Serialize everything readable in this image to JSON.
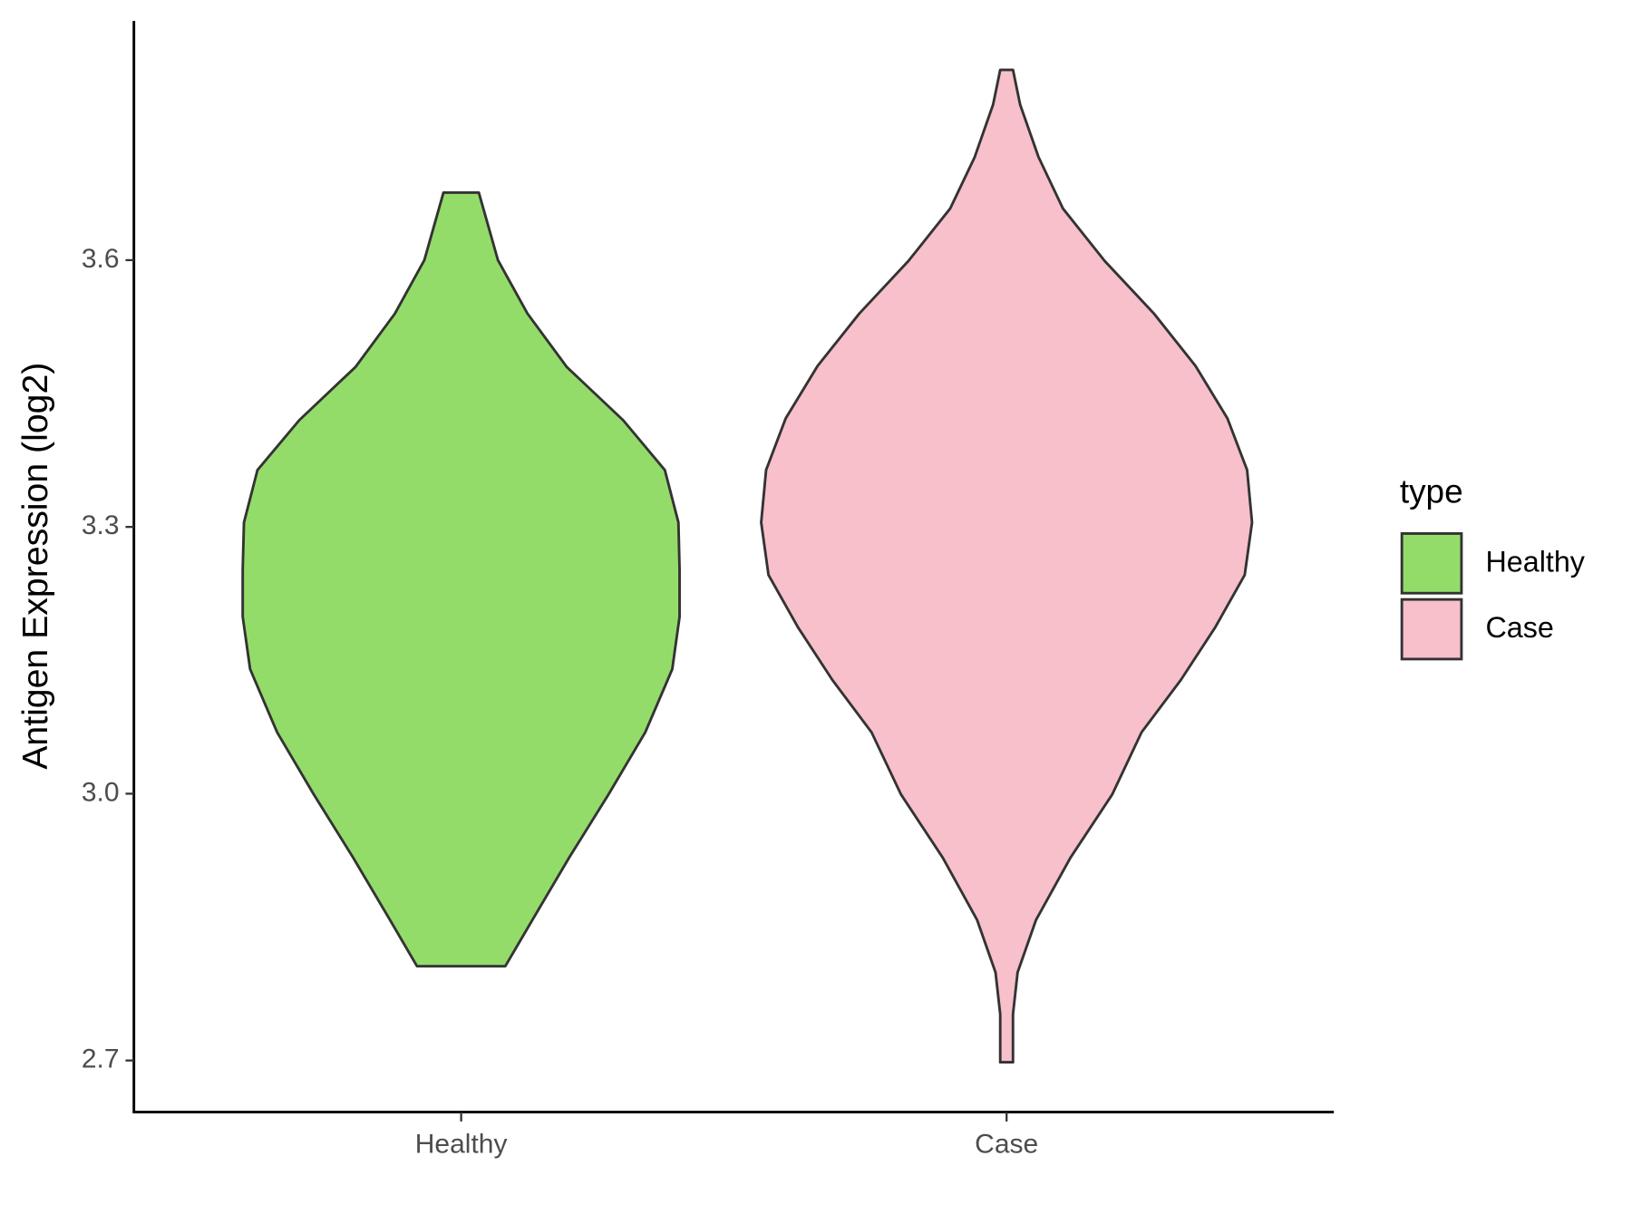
{
  "chart_data": {
    "type": "violin",
    "y_label": "Antigen Expression (log2)",
    "legend_title": "type",
    "categories": [
      "Healthy",
      "Case"
    ],
    "series": [
      {
        "name": "Healthy",
        "color": "#94dc6a",
        "y": [
          3.676,
          3.6,
          3.54,
          3.48,
          3.42,
          3.364,
          3.305,
          3.252,
          3.199,
          3.14,
          3.069,
          2.999,
          2.928,
          2.858,
          2.806
        ],
        "density": [
          0.072,
          0.15,
          0.27,
          0.43,
          0.66,
          0.83,
          0.885,
          0.89,
          0.89,
          0.86,
          0.75,
          0.6,
          0.44,
          0.29,
          0.18
        ]
      },
      {
        "name": "Case",
        "color": "#f7c0cb",
        "y": [
          3.814,
          3.775,
          3.716,
          3.658,
          3.599,
          3.54,
          3.481,
          3.422,
          3.364,
          3.305,
          3.246,
          3.187,
          3.128,
          3.069,
          2.999,
          2.928,
          2.858,
          2.799,
          2.752,
          2.698
        ],
        "density": [
          0.026,
          0.055,
          0.13,
          0.23,
          0.4,
          0.6,
          0.77,
          0.9,
          0.98,
          1.0,
          0.97,
          0.85,
          0.71,
          0.55,
          0.43,
          0.26,
          0.12,
          0.045,
          0.026,
          0.026
        ]
      }
    ],
    "ylim": [
      2.642,
      3.869
    ],
    "yticks": [
      {
        "value": 2.7,
        "label": "2.7"
      },
      {
        "value": 3.0,
        "label": "3.0"
      },
      {
        "value": 3.3,
        "label": "3.3"
      },
      {
        "value": 3.6,
        "label": "3.6"
      }
    ]
  }
}
